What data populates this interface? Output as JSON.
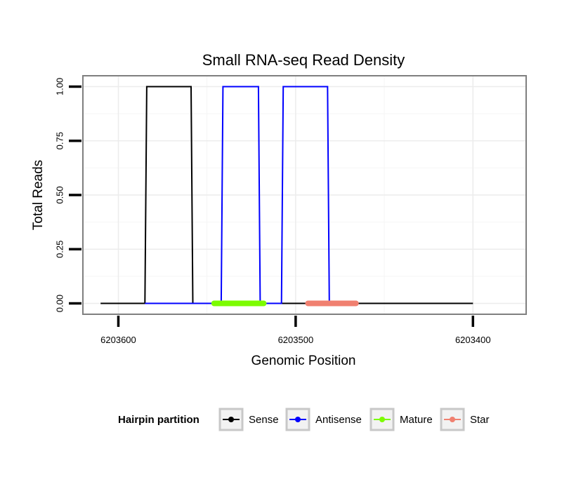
{
  "chart_data": {
    "type": "line",
    "title": "Small RNA-seq Read Density",
    "xlabel": "Genomic Position",
    "ylabel": "Total Reads",
    "x_reversed": true,
    "xlim": [
      6203620,
      6203370
    ],
    "ylim": [
      -0.05,
      1.05
    ],
    "x_ticks": [
      6203600,
      6203500,
      6203400
    ],
    "x_tick_labels": [
      "6203600",
      "6203500",
      "6203400"
    ],
    "y_ticks": [
      0,
      0.25,
      0.5,
      0.75,
      1.0
    ],
    "y_tick_labels": [
      "0.00",
      "0.25",
      "0.50",
      "0.75",
      "1.00"
    ],
    "grid": true,
    "series": [
      {
        "name": "Sense",
        "color": "#000000",
        "stroke": "thin",
        "x": [
          6203610,
          6203585,
          6203584,
          6203559,
          6203558,
          6203400
        ],
        "y": [
          0,
          0,
          1,
          1,
          0,
          0
        ]
      },
      {
        "name": "Antisense",
        "color": "#0000ff",
        "stroke": "thin",
        "x": [
          6203585,
          6203558,
          6203542,
          6203541,
          6203521,
          6203520,
          6203508,
          6203507,
          6203482,
          6203481
        ],
        "y": [
          0,
          0,
          0,
          1,
          1,
          0,
          0,
          1,
          1,
          0
        ]
      },
      {
        "name": "Mature",
        "color": "#7cfc00",
        "stroke": "thick",
        "x": [
          6203546,
          6203518
        ],
        "y": [
          0,
          0
        ]
      },
      {
        "name": "Star",
        "color": "#f08070",
        "stroke": "thick",
        "x": [
          6203493,
          6203466
        ],
        "y": [
          0,
          0
        ]
      }
    ],
    "legend": {
      "title": "Hairpin partition",
      "placement": "bottom",
      "entries": [
        "Sense",
        "Antisense",
        "Mature",
        "Star"
      ]
    }
  }
}
